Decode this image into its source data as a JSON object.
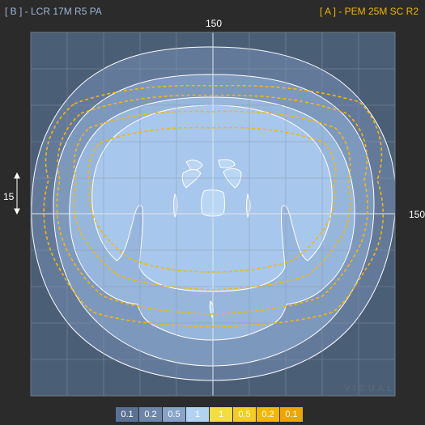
{
  "header": {
    "left_title": "[ B ] - LCR 17M R5 PA",
    "right_title": "[ A ] - PEM 25M SC R2"
  },
  "scale": {
    "top_label": "150",
    "right_label": "150",
    "left_label": "15"
  },
  "watermark": "VISUAL",
  "colors": {
    "background": "#2b2b2b",
    "plot_background": "#4a5f76",
    "grid": "#8796a6",
    "contour_b_fill": [
      "#63799a",
      "#7d98bd",
      "#97b6dc",
      "#a8c7ec"
    ],
    "contour_a_stroke": "#f5b800"
  },
  "legend": [
    {
      "label": "0.1",
      "bg": "#5b7194",
      "fg": "#ffffff"
    },
    {
      "label": "0.2",
      "bg": "#6d86aa",
      "fg": "#ffffff"
    },
    {
      "label": "0.5",
      "bg": "#86a3c8",
      "fg": "#ffffff"
    },
    {
      "label": "1",
      "bg": "#b2d2f4",
      "fg": "#ffffff"
    },
    {
      "label": "1",
      "bg": "#f2de3c",
      "fg": "#ffffff"
    },
    {
      "label": "0.5",
      "bg": "#f4cc22",
      "fg": "#ffffff"
    },
    {
      "label": "0.2",
      "bg": "#f2b800",
      "fg": "#ffffff"
    },
    {
      "label": "0.1",
      "bg": "#eda600",
      "fg": "#ffffff"
    }
  ]
}
